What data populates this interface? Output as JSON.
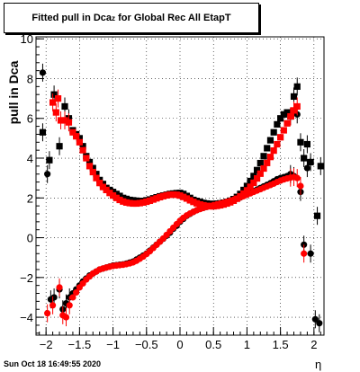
{
  "chart_data": {
    "type": "scatter",
    "title_main": "Fitted pull in Dca",
    "title_sub": "z",
    "title_tail": "for Global Rec All EtapT",
    "xlabel": "η",
    "ylabel": "pull in Dca",
    "xlim": [
      -2.15,
      2.15
    ],
    "ylim": [
      -4.9,
      10.1
    ],
    "xticks": [
      -2,
      -1.5,
      -1,
      -0.5,
      0,
      0.5,
      1,
      1.5,
      2
    ],
    "xtick_labels": [
      "−2",
      "−1.5",
      "−1",
      "−0.5",
      "0",
      "0.5",
      "1",
      "1.5",
      "2"
    ],
    "yticks": [
      -4,
      -2,
      0,
      2,
      4,
      6,
      8,
      10
    ],
    "ytick_labels": [
      "−4",
      "−2",
      "0",
      "2",
      "4",
      "6",
      "8",
      "10"
    ],
    "grid": true,
    "legend": "none",
    "colors": {
      "black": "#000000",
      "red": "#ff0000"
    },
    "series": [
      {
        "marker": "square",
        "color": "#000000",
        "x": [
          -2.05,
          -1.95,
          -1.88,
          -1.8,
          -1.72,
          -1.66,
          -1.6,
          -1.55,
          -1.5,
          -1.45,
          -1.4,
          -1.35,
          -1.3,
          -1.25,
          -1.2,
          -1.15,
          -1.1,
          -1.05,
          -1.0,
          -0.95,
          -0.9,
          -0.85,
          -0.8,
          -0.75,
          -0.7,
          -0.65,
          -0.6,
          -0.55,
          -0.5,
          -0.45,
          -0.4,
          -0.35,
          -0.3,
          -0.25,
          -0.2,
          -0.15,
          -0.1,
          -0.05,
          0.0,
          0.05,
          0.1,
          0.15,
          0.2,
          0.25,
          0.3,
          0.35,
          0.4,
          0.45,
          0.5,
          0.55,
          0.6,
          0.65,
          0.7,
          0.75,
          0.8,
          0.85,
          0.9,
          0.95,
          1.0,
          1.05,
          1.1,
          1.15,
          1.2,
          1.25,
          1.3,
          1.35,
          1.4,
          1.45,
          1.5,
          1.55,
          1.6,
          1.65,
          1.7,
          1.75,
          1.8,
          1.85,
          1.9,
          1.95,
          2.05,
          2.1
        ],
        "y": [
          5.3,
          3.9,
          7.2,
          4.6,
          6.6,
          6.0,
          5.4,
          5.2,
          5.0,
          4.6,
          4.1,
          3.8,
          3.5,
          3.2,
          2.9,
          2.7,
          2.5,
          2.4,
          2.3,
          2.2,
          2.1,
          2.0,
          1.95,
          1.9,
          1.88,
          1.86,
          1.84,
          1.85,
          1.88,
          1.92,
          1.98,
          2.03,
          2.08,
          2.12,
          2.16,
          2.2,
          2.22,
          2.24,
          2.25,
          2.2,
          2.1,
          2.0,
          1.9,
          1.85,
          1.8,
          1.75,
          1.72,
          1.7,
          1.7,
          1.71,
          1.73,
          1.76,
          1.8,
          1.86,
          1.94,
          2.05,
          2.2,
          2.4,
          2.6,
          2.85,
          3.1,
          3.4,
          3.75,
          4.1,
          4.5,
          4.9,
          5.3,
          5.7,
          6.0,
          6.2,
          6.3,
          6.1,
          7.1,
          7.6,
          4.8,
          4.0,
          4.7,
          3.8,
          1.1,
          3.6
        ]
      },
      {
        "marker": "circle",
        "color": "#000000",
        "x": [
          -2.05,
          -1.98,
          -1.93,
          -1.88,
          -1.8,
          -1.75,
          -1.7,
          -1.65,
          -1.6,
          -1.55,
          -1.5,
          -1.45,
          -1.4,
          -1.35,
          -1.3,
          -1.25,
          -1.2,
          -1.15,
          -1.1,
          -1.05,
          -1.0,
          -0.95,
          -0.9,
          -0.85,
          -0.8,
          -0.75,
          -0.7,
          -0.65,
          -0.6,
          -0.55,
          -0.5,
          -0.45,
          -0.4,
          -0.35,
          -0.3,
          -0.25,
          -0.2,
          -0.15,
          -0.1,
          -0.05,
          0.0,
          0.05,
          0.1,
          0.15,
          0.2,
          0.25,
          0.3,
          0.35,
          0.4,
          0.45,
          0.5,
          0.55,
          0.6,
          0.65,
          0.7,
          0.75,
          0.8,
          0.85,
          0.9,
          0.95,
          1.0,
          1.05,
          1.1,
          1.15,
          1.2,
          1.25,
          1.3,
          1.35,
          1.4,
          1.45,
          1.5,
          1.55,
          1.6,
          1.65,
          1.7,
          1.75,
          1.8,
          1.85,
          1.9,
          1.95,
          2.02,
          2.08
        ],
        "y": [
          8.3,
          3.2,
          -3.1,
          -3.0,
          -2.6,
          -3.6,
          -3.3,
          -3.0,
          -2.8,
          -2.6,
          -2.4,
          -2.2,
          -2.05,
          -1.9,
          -1.8,
          -1.7,
          -1.6,
          -1.55,
          -1.5,
          -1.45,
          -1.4,
          -1.38,
          -1.36,
          -1.34,
          -1.3,
          -1.25,
          -1.2,
          -1.1,
          -1.0,
          -0.9,
          -0.8,
          -0.65,
          -0.5,
          -0.35,
          -0.2,
          -0.05,
          0.1,
          0.25,
          0.45,
          0.6,
          0.8,
          0.95,
          1.1,
          1.2,
          1.3,
          1.38,
          1.45,
          1.5,
          1.55,
          1.6,
          1.63,
          1.66,
          1.7,
          1.75,
          1.8,
          1.85,
          1.9,
          1.96,
          2.02,
          2.1,
          2.18,
          2.26,
          2.34,
          2.42,
          2.5,
          2.58,
          2.66,
          2.74,
          2.84,
          2.94,
          3.0,
          3.05,
          3.1,
          3.2,
          3.1,
          6.2,
          2.3,
          -0.35,
          3.5,
          -0.8,
          -4.1,
          -4.3
        ]
      },
      {
        "marker": "square",
        "color": "#ff0000",
        "x": [
          -1.9,
          -1.85,
          -1.82,
          -1.78,
          -1.72,
          -1.66,
          -1.6,
          -1.55,
          -1.5,
          -1.45,
          -1.4,
          -1.35,
          -1.3,
          -1.25,
          -1.2,
          -1.15,
          -1.1,
          -1.05,
          -1.0,
          -0.95,
          -0.9,
          -0.85,
          -0.8,
          -0.75,
          -0.7,
          -0.65,
          -0.6,
          -0.55,
          -0.5,
          -0.45,
          -0.4,
          -0.35,
          -0.3,
          -0.25,
          -0.2,
          -0.15,
          -0.1,
          -0.05,
          0.0,
          0.05,
          0.1,
          0.15,
          0.2,
          0.25,
          0.3,
          0.35,
          0.4,
          0.45,
          0.5,
          0.55,
          0.6,
          0.65,
          0.7,
          0.75,
          0.8,
          0.85,
          0.9,
          0.95,
          1.0,
          1.05,
          1.1,
          1.15,
          1.2,
          1.25,
          1.3,
          1.35,
          1.4,
          1.45,
          1.5,
          1.55,
          1.6,
          1.65,
          1.7,
          1.75
        ],
        "y": [
          6.8,
          6.3,
          7.0,
          5.9,
          5.9,
          5.8,
          5.3,
          5.1,
          4.8,
          4.4,
          4.0,
          3.6,
          3.3,
          3.0,
          2.75,
          2.55,
          2.4,
          2.25,
          2.12,
          2.0,
          1.9,
          1.82,
          1.77,
          1.74,
          1.72,
          1.72,
          1.74,
          1.77,
          1.81,
          1.86,
          1.92,
          1.98,
          2.04,
          2.09,
          2.13,
          2.16,
          2.17,
          2.16,
          2.12,
          2.05,
          1.97,
          1.88,
          1.8,
          1.73,
          1.67,
          1.63,
          1.6,
          1.58,
          1.58,
          1.6,
          1.63,
          1.67,
          1.72,
          1.78,
          1.86,
          1.96,
          2.08,
          2.22,
          2.38,
          2.56,
          2.76,
          2.98,
          3.22,
          3.48,
          3.76,
          4.06,
          4.38,
          4.7,
          5.05,
          5.4,
          5.75,
          6.1,
          6.4,
          6.6
        ]
      },
      {
        "marker": "circle",
        "color": "#ff0000",
        "x": [
          -1.98,
          -1.9,
          -1.8,
          -1.75,
          -1.7,
          -1.65,
          -1.6,
          -1.55,
          -1.5,
          -1.45,
          -1.4,
          -1.35,
          -1.3,
          -1.25,
          -1.2,
          -1.15,
          -1.1,
          -1.05,
          -1.0,
          -0.95,
          -0.9,
          -0.85,
          -0.8,
          -0.75,
          -0.7,
          -0.65,
          -0.6,
          -0.55,
          -0.5,
          -0.45,
          -0.4,
          -0.35,
          -0.3,
          -0.25,
          -0.2,
          -0.15,
          -0.1,
          -0.05,
          0.0,
          0.05,
          0.1,
          0.15,
          0.2,
          0.25,
          0.3,
          0.35,
          0.4,
          0.45,
          0.5,
          0.55,
          0.6,
          0.65,
          0.7,
          0.75,
          0.8,
          0.85,
          0.9,
          0.95,
          1.0,
          1.05,
          1.1,
          1.15,
          1.2,
          1.25,
          1.3,
          1.35,
          1.4,
          1.45,
          1.5,
          1.55,
          1.6,
          1.65,
          1.7,
          1.75,
          1.8,
          1.85
        ],
        "y": [
          -3.8,
          -3.4,
          -2.5,
          -3.9,
          -4.0,
          -3.4,
          -3.0,
          -2.75,
          -2.5,
          -2.3,
          -2.1,
          -1.95,
          -1.8,
          -1.7,
          -1.6,
          -1.55,
          -1.5,
          -1.46,
          -1.42,
          -1.4,
          -1.38,
          -1.36,
          -1.33,
          -1.29,
          -1.24,
          -1.16,
          -1.06,
          -0.95,
          -0.82,
          -0.68,
          -0.52,
          -0.36,
          -0.2,
          -0.04,
          0.14,
          0.32,
          0.5,
          0.68,
          0.85,
          1.0,
          1.12,
          1.22,
          1.3,
          1.38,
          1.44,
          1.5,
          1.55,
          1.6,
          1.64,
          1.68,
          1.72,
          1.76,
          1.81,
          1.86,
          1.91,
          1.97,
          2.03,
          2.09,
          2.16,
          2.23,
          2.3,
          2.37,
          2.44,
          2.51,
          2.58,
          2.65,
          2.72,
          2.8,
          2.87,
          2.93,
          2.98,
          3.02,
          3.05,
          3.0,
          2.6,
          -0.8
        ]
      }
    ]
  },
  "footer": {
    "datestamp": "Sun Oct 18 16:49:55 2020"
  }
}
